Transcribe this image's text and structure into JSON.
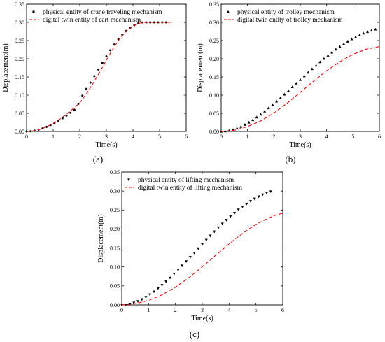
{
  "chart_data": [
    {
      "type": "scatter",
      "panel_label": "(a)",
      "xlabel": "Time(s)",
      "ylabel": "Displacement(m)",
      "xlim": [
        0,
        6
      ],
      "ylim": [
        0,
        0.35
      ],
      "xticks": [
        "0",
        "1",
        "2",
        "3",
        "4",
        "5",
        "6"
      ],
      "yticks": [
        "0.00",
        "0.05",
        "0.10",
        "0.15",
        "0.20",
        "0.25",
        "0.30",
        "0.35"
      ],
      "legend_position": "top-left",
      "series": [
        {
          "name": "physical entity of crane traveling mechanism",
          "marker": "circle",
          "color": "#000000",
          "x": [
            0.0,
            0.15,
            0.3,
            0.45,
            0.6,
            0.75,
            0.9,
            1.05,
            1.2,
            1.35,
            1.5,
            1.65,
            1.8,
            1.95,
            2.1,
            2.25,
            2.4,
            2.55,
            2.7,
            2.85,
            3.0,
            3.15,
            3.3,
            3.45,
            3.6,
            3.75,
            3.9,
            4.05,
            4.2,
            4.35,
            4.5,
            4.65,
            4.8,
            4.95,
            5.1,
            5.25
          ],
          "y": [
            0.0,
            0.0006,
            0.0023,
            0.005,
            0.0085,
            0.0127,
            0.0176,
            0.0231,
            0.0293,
            0.0362,
            0.0436,
            0.0514,
            0.0596,
            0.0762,
            0.0985,
            0.117,
            0.1343,
            0.1522,
            0.1705,
            0.1888,
            0.2066,
            0.2234,
            0.2391,
            0.2534,
            0.266,
            0.2768,
            0.2856,
            0.2924,
            0.2971,
            0.2998,
            0.3,
            0.3,
            0.3,
            0.3,
            0.3,
            0.3
          ]
        },
        {
          "name": "digital twin entity of cart mechanism",
          "line": "dashed",
          "color": "#ff0000",
          "x": [
            0.0,
            0.25,
            0.5,
            0.75,
            1.0,
            1.25,
            1.5,
            1.75,
            2.0,
            2.25,
            2.5,
            2.75,
            3.0,
            3.25,
            3.5,
            3.75,
            4.0,
            4.25,
            4.5,
            4.75,
            5.0,
            5.25,
            5.5
          ],
          "y": [
            0.0,
            0.0017,
            0.0058,
            0.0127,
            0.0221,
            0.0339,
            0.0476,
            0.0628,
            0.079,
            0.1037,
            0.1323,
            0.1636,
            0.1962,
            0.2278,
            0.2552,
            0.2759,
            0.2901,
            0.2978,
            0.3,
            0.3,
            0.3,
            0.3,
            0.3
          ]
        }
      ]
    },
    {
      "type": "scatter",
      "panel_label": "(b)",
      "xlabel": "Time(s)",
      "ylabel": "Displacement(m)",
      "xlim": [
        0,
        6
      ],
      "ylim": [
        0,
        0.35
      ],
      "xticks": [
        "0",
        "1",
        "2",
        "3",
        "4",
        "5",
        "6"
      ],
      "yticks": [
        "0.00",
        "0.05",
        "0.10",
        "0.15",
        "0.20",
        "0.25",
        "0.30",
        "0.35"
      ],
      "legend_position": "top-left",
      "series": [
        {
          "name": "physical entity of trolley mechanism",
          "marker": "triangle-up",
          "color": "#000000",
          "x": [
            0.0,
            0.15,
            0.3,
            0.45,
            0.6,
            0.75,
            0.9,
            1.05,
            1.2,
            1.35,
            1.5,
            1.65,
            1.8,
            1.95,
            2.1,
            2.25,
            2.4,
            2.55,
            2.7,
            2.85,
            3.0,
            3.15,
            3.3,
            3.45,
            3.6,
            3.75,
            3.9,
            4.05,
            4.2,
            4.35,
            4.5,
            4.65,
            4.8,
            4.95,
            5.1,
            5.25,
            5.4,
            5.55,
            5.7,
            5.85
          ],
          "y": [
            0.0,
            0.0006,
            0.0023,
            0.005,
            0.0088,
            0.0134,
            0.0188,
            0.025,
            0.0318,
            0.0392,
            0.0471,
            0.0555,
            0.0643,
            0.0734,
            0.0828,
            0.0924,
            0.1022,
            0.1122,
            0.1222,
            0.1323,
            0.1423,
            0.1523,
            0.1622,
            0.172,
            0.1816,
            0.191,
            0.2001,
            0.209,
            0.2175,
            0.2257,
            0.2334,
            0.2407,
            0.2476,
            0.254,
            0.2598,
            0.2651,
            0.2699,
            0.2741,
            0.2778,
            0.2809
          ]
        },
        {
          "name": "digital twin entity of trolley mechanism",
          "line": "dashed",
          "color": "#ff0000",
          "x": [
            0.0,
            0.5,
            1.0,
            1.5,
            2.0,
            2.5,
            3.0,
            3.5,
            4.0,
            4.5,
            5.0,
            5.5,
            6.0
          ],
          "y": [
            0.0,
            0.0034,
            0.0134,
            0.029,
            0.0508,
            0.0777,
            0.1075,
            0.138,
            0.1668,
            0.1919,
            0.2122,
            0.2263,
            0.2334
          ]
        }
      ]
    },
    {
      "type": "scatter",
      "panel_label": "(c)",
      "xlabel": "Time(s)",
      "ylabel": "Displacement(m)",
      "xlim": [
        0,
        6
      ],
      "ylim": [
        0,
        0.35
      ],
      "xticks": [
        "0",
        "1",
        "2",
        "3",
        "4",
        "5",
        "6"
      ],
      "yticks": [
        "0.00",
        "0.05",
        "0.10",
        "0.15",
        "0.20",
        "0.25",
        "0.30",
        "0.35"
      ],
      "legend_position": "top-left",
      "series": [
        {
          "name": "physical entity of lifting mechanism",
          "marker": "triangle-down",
          "color": "#000000",
          "x": [
            0.0,
            0.15,
            0.3,
            0.45,
            0.6,
            0.75,
            0.9,
            1.05,
            1.2,
            1.35,
            1.5,
            1.65,
            1.8,
            1.95,
            2.1,
            2.25,
            2.4,
            2.55,
            2.7,
            2.85,
            3.0,
            3.15,
            3.3,
            3.45,
            3.6,
            3.75,
            3.9,
            4.05,
            4.2,
            4.35,
            4.5,
            4.65,
            4.8,
            4.95,
            5.1,
            5.25,
            5.4,
            5.55
          ],
          "y": [
            0.0,
            0.0007,
            0.0025,
            0.0055,
            0.0095,
            0.0145,
            0.0205,
            0.0273,
            0.0348,
            0.0431,
            0.052,
            0.0614,
            0.0713,
            0.0817,
            0.0924,
            0.1033,
            0.1145,
            0.1258,
            0.1371,
            0.1485,
            0.1598,
            0.171,
            0.1821,
            0.1929,
            0.2035,
            0.2137,
            0.2236,
            0.2331,
            0.2421,
            0.2507,
            0.2587,
            0.2662,
            0.2732,
            0.2796,
            0.2853,
            0.2904,
            0.2948,
            0.2985
          ]
        },
        {
          "name": "digital twin entity of lifting mechanism",
          "line": "dashed",
          "color": "#ff0000",
          "x": [
            0.0,
            0.5,
            1.0,
            1.5,
            2.0,
            2.5,
            3.0,
            3.5,
            4.0,
            4.5,
            5.0,
            5.5,
            5.75,
            6.0
          ],
          "y": [
            0.0,
            0.0032,
            0.012,
            0.0265,
            0.0465,
            0.0716,
            0.1003,
            0.1307,
            0.1607,
            0.1884,
            0.212,
            0.2297,
            0.2369,
            0.2415
          ]
        }
      ]
    }
  ]
}
